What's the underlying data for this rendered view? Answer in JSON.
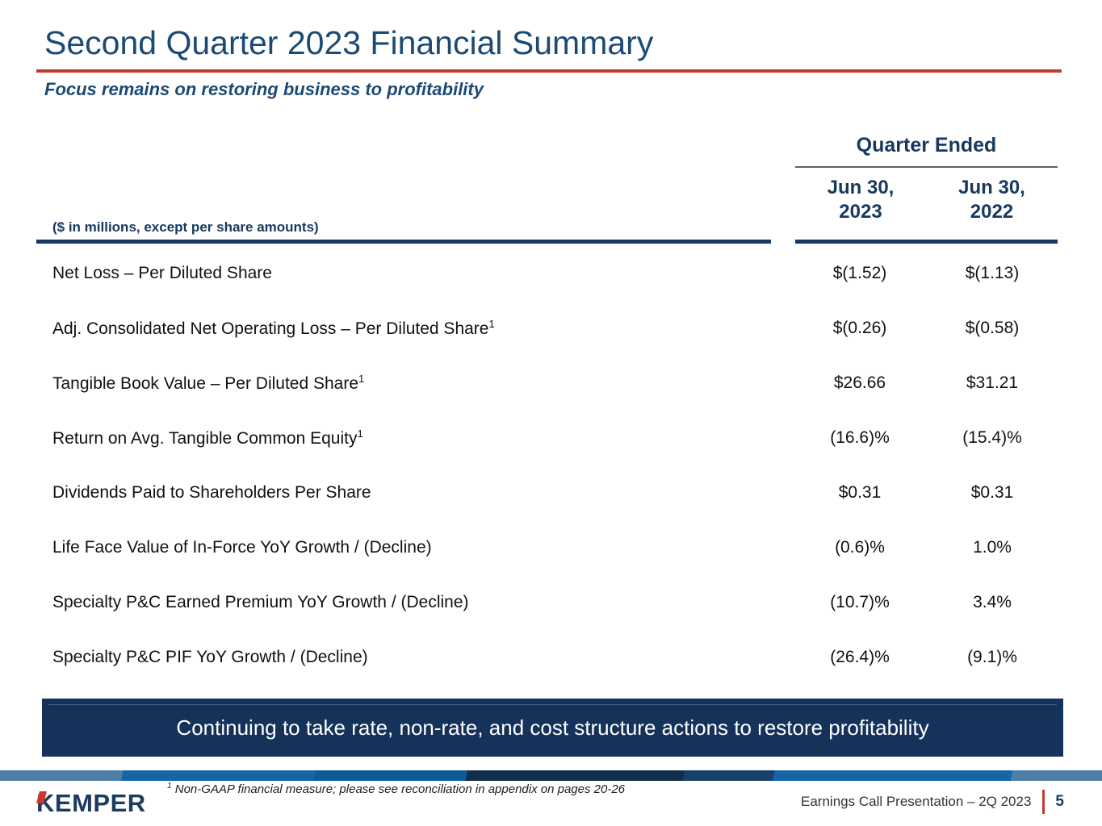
{
  "slide": {
    "title": "Second Quarter 2023 Financial Summary",
    "subtitle": "Focus remains on restoring business to profitability",
    "accent_red": "#c23b2e",
    "navy": "#17395f"
  },
  "table": {
    "group_header": "Quarter Ended",
    "row_header": "($ in millions, except per share amounts)",
    "columns": [
      {
        "line1": "Jun 30,",
        "line2": "2023"
      },
      {
        "line1": "Jun 30,",
        "line2": "2022"
      }
    ],
    "rows": [
      {
        "label": "Net Loss – Per Diluted Share",
        "sup": "",
        "v2023": "$(1.52)",
        "v2022": "$(1.13)"
      },
      {
        "label": "Adj. Consolidated Net Operating Loss – Per Diluted Share",
        "sup": "1",
        "v2023": "$(0.26)",
        "v2022": "$(0.58)"
      },
      {
        "label": "Tangible Book Value – Per Diluted Share",
        "sup": "1",
        "v2023": "$26.66",
        "v2022": "$31.21"
      },
      {
        "label": "Return on Avg. Tangible Common Equity",
        "sup": "1",
        "v2023": "(16.6)%",
        "v2022": "(15.4)%"
      },
      {
        "label": "Dividends Paid to Shareholders Per Share",
        "sup": "",
        "v2023": "$0.31",
        "v2022": "$0.31"
      },
      {
        "label": "Life Face Value of In-Force YoY Growth / (Decline)",
        "sup": "",
        "v2023": "(0.6)%",
        "v2022": "1.0%"
      },
      {
        "label": "Specialty P&C Earned Premium YoY Growth / (Decline)",
        "sup": "",
        "v2023": "(10.7)%",
        "v2022": "3.4%"
      },
      {
        "label": "Specialty P&C PIF YoY Growth / (Decline)",
        "sup": "",
        "v2023": "(26.4)%",
        "v2022": "(9.1)%"
      }
    ]
  },
  "banner": {
    "text": "Continuing to take rate, non-rate, and cost structure actions to restore profitability"
  },
  "footer": {
    "footnote_sup": "1",
    "footnote_text": " Non-GAAP financial measure; please see reconciliation in appendix on pages 20-26",
    "logo_text": "KEMPER",
    "right_text": "Earnings Call Presentation – 2Q 2023",
    "page_number": "5"
  }
}
